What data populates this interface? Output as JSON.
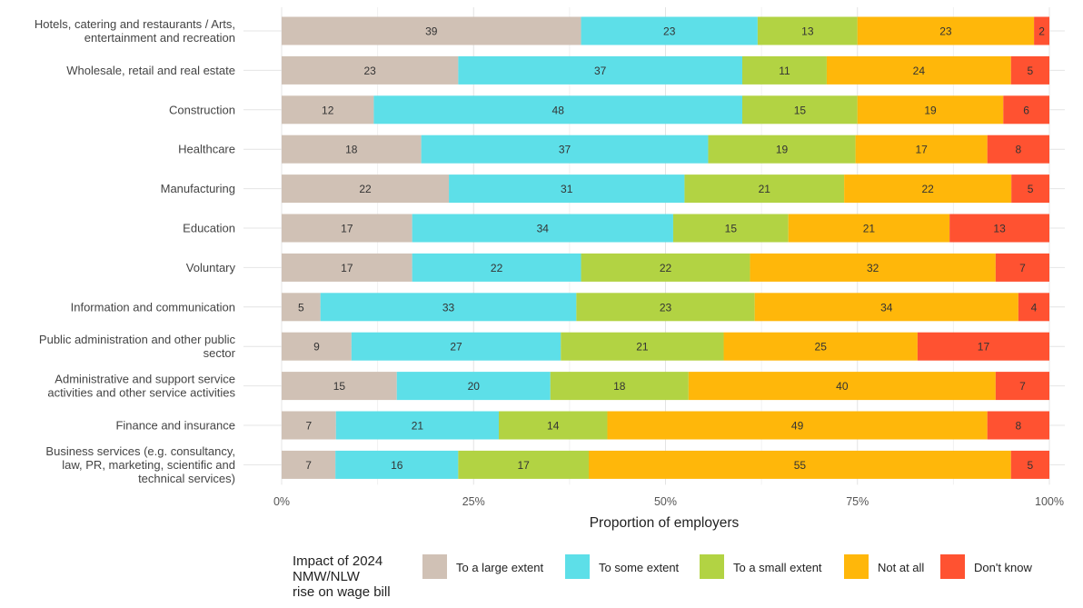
{
  "chart_data": {
    "type": "bar",
    "orientation": "horizontal",
    "stacked": true,
    "percent": true,
    "categories": [
      "Hotels, catering and restaurants / Arts, entertainment and recreation",
      "Wholesale, retail and real estate",
      "Construction",
      "Healthcare",
      "Manufacturing",
      "Education",
      "Voluntary",
      "Information and communication",
      "Public administration and other public sector",
      "Administrative and support service activities and other service activities",
      "Finance and insurance",
      "Business services (e.g. consultancy, law, PR, marketing, scientific and technical services)"
    ],
    "category_label_lines": [
      [
        "Hotels, catering and restaurants / Arts,",
        "entertainment and recreation"
      ],
      [
        "Wholesale, retail and real estate"
      ],
      [
        "Construction"
      ],
      [
        "Healthcare"
      ],
      [
        "Manufacturing"
      ],
      [
        "Education"
      ],
      [
        "Voluntary"
      ],
      [
        "Information and communication"
      ],
      [
        "Public administration and other public",
        "sector"
      ],
      [
        "Administrative and support service",
        "activities and other service activities"
      ],
      [
        "Finance and insurance"
      ],
      [
        "Business services (e.g. consultancy,",
        "law, PR, marketing, scientific and",
        "technical services)"
      ]
    ],
    "series": [
      {
        "name": "To a large extent",
        "color": "#d0c1b5",
        "values": [
          39,
          23,
          12,
          18,
          22,
          17,
          17,
          5,
          9,
          15,
          7,
          7
        ]
      },
      {
        "name": "To some extent",
        "color": "#5ddfe8",
        "values": [
          23,
          37,
          48,
          37,
          31,
          34,
          22,
          33,
          27,
          20,
          21,
          16
        ]
      },
      {
        "name": "To a small extent",
        "color": "#b2d343",
        "values": [
          13,
          11,
          15,
          19,
          21,
          15,
          22,
          23,
          21,
          18,
          14,
          17
        ]
      },
      {
        "name": "Not at all",
        "color": "#ffb70a",
        "values": [
          23,
          24,
          19,
          17,
          22,
          21,
          32,
          34,
          25,
          40,
          49,
          55
        ]
      },
      {
        "name": "Don't know",
        "color": "#ff5231",
        "values": [
          2,
          5,
          6,
          8,
          5,
          13,
          7,
          4,
          17,
          7,
          8,
          5
        ]
      }
    ],
    "xlabel": "Proportion of employers",
    "xlim": [
      0,
      100
    ],
    "xticks": [
      "0%",
      "25%",
      "50%",
      "75%",
      "100%"
    ],
    "xtick_values": [
      0,
      25,
      50,
      75,
      100
    ],
    "grid": true,
    "legend_position": "bottom",
    "legend_title_lines": [
      "Impact of 2024",
      "NMW/NLW",
      "rise on wage bill"
    ]
  }
}
